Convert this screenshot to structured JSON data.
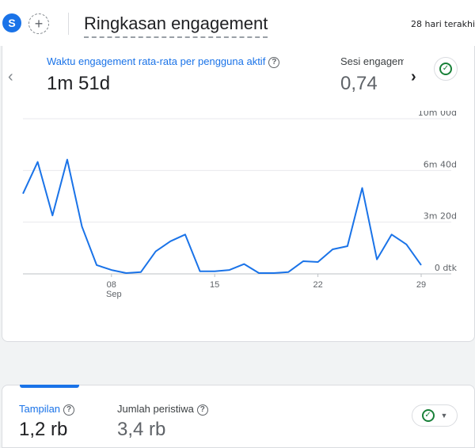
{
  "header": {
    "avatar_letter": "S",
    "add_icon": "plus-icon",
    "title": "Ringkasan engagement",
    "date_range": "28 hari terakhi"
  },
  "engagement_card": {
    "metric_primary": {
      "label": "Waktu engagement rata-rata per pengguna aktif",
      "value": "1m 51d"
    },
    "metric_secondary": {
      "label": "Sesi engagement",
      "value": "0,74"
    },
    "status_icon": "check-circle-icon",
    "accent_color": "#1a73e8",
    "status_color": "#188038"
  },
  "chart_data": {
    "type": "line",
    "y_tick_labels": [
      "10m 00d",
      "6m 40d",
      "3m 20d",
      "0 dtk"
    ],
    "y_tick_seconds": [
      600,
      400,
      200,
      0
    ],
    "ylim": [
      0,
      600
    ],
    "x_tick_labels": [
      {
        "index": 7,
        "label": "08",
        "sub": "Sep"
      },
      {
        "index": 14,
        "label": "15",
        "sub": ""
      },
      {
        "index": 21,
        "label": "22",
        "sub": ""
      },
      {
        "index": 28,
        "label": "29",
        "sub": ""
      }
    ],
    "series": [
      {
        "color": "#1a73e8",
        "values": [
          310,
          433,
          226,
          442,
          183,
          34,
          15,
          3,
          7,
          87,
          126,
          152,
          10,
          10,
          15,
          38,
          3,
          3,
          7,
          49,
          46,
          95,
          107,
          332,
          56,
          152,
          114,
          34
        ]
      }
    ],
    "grid": true
  },
  "second_card": {
    "metric_primary": {
      "label": "Tampilan",
      "value": "1,2 rb"
    },
    "metric_secondary": {
      "label": "Jumlah peristiwa",
      "value": "3,4 rb"
    },
    "dropdown_icon": "chevron-down-icon"
  }
}
